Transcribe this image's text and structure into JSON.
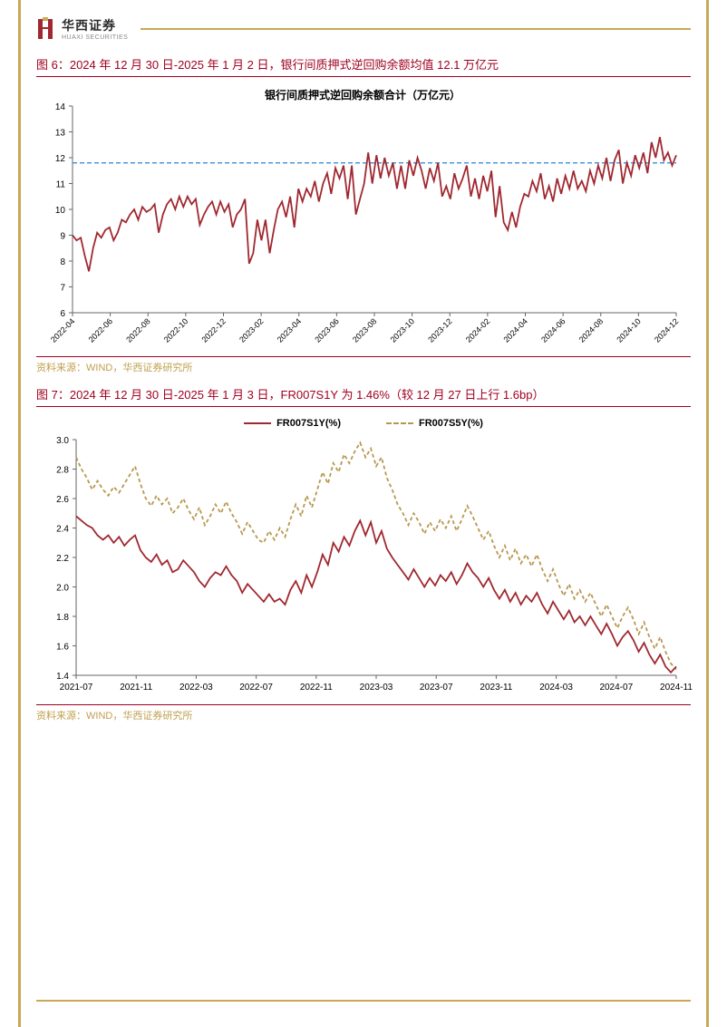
{
  "header": {
    "company_cn": "华西证券",
    "company_en": "HUAXI SECURITIES"
  },
  "chart6": {
    "type": "line",
    "caption": "图 6：2024 年 12 月 30 日-2025 年 1 月 2 日，银行间质押式逆回购余额均值 12.1 万亿元",
    "chart_title": "银行间质押式逆回购余额合计（万亿元）",
    "source": "资料来源：WIND，华西证券研究所",
    "ylim": [
      6,
      14
    ],
    "ytick_step": 1,
    "yticks": [
      "6",
      "7",
      "8",
      "9",
      "10",
      "11",
      "12",
      "13",
      "14"
    ],
    "xlabels": [
      "2022-04",
      "2022-06",
      "2022-08",
      "2022-10",
      "2022-12",
      "2023-02",
      "2023-04",
      "2023-06",
      "2023-08",
      "2023-10",
      "2023-12",
      "2024-02",
      "2024-04",
      "2024-06",
      "2024-08",
      "2024-10",
      "2024-12"
    ],
    "reference_line": 11.8,
    "reference_color": "#3a8fd8",
    "line_color": "#a02830",
    "line_width": 1.8,
    "grid_color": "#666666",
    "background_color": "#ffffff",
    "title_fontsize": 12,
    "series": [
      9.0,
      8.8,
      8.9,
      8.2,
      7.6,
      8.5,
      9.1,
      8.9,
      9.2,
      9.3,
      8.8,
      9.1,
      9.6,
      9.5,
      9.8,
      10.0,
      9.6,
      10.1,
      9.9,
      10.0,
      10.2,
      9.1,
      9.8,
      10.2,
      10.4,
      10.0,
      10.5,
      10.1,
      10.5,
      10.2,
      10.4,
      9.4,
      9.8,
      10.1,
      10.3,
      9.8,
      10.3,
      9.9,
      10.2,
      9.3,
      9.8,
      10.0,
      10.4,
      7.9,
      8.3,
      9.6,
      8.8,
      9.6,
      8.3,
      9.2,
      10.0,
      10.3,
      9.7,
      10.5,
      9.3,
      10.8,
      10.3,
      10.8,
      10.5,
      11.1,
      10.3,
      11.0,
      11.4,
      10.6,
      11.6,
      11.2,
      11.7,
      10.4,
      11.7,
      9.8,
      10.4,
      11.0,
      12.2,
      11.0,
      12.1,
      11.2,
      12.0,
      11.3,
      11.8,
      10.8,
      11.7,
      10.8,
      11.9,
      11.3,
      12.0,
      11.5,
      10.8,
      11.6,
      11.1,
      11.8,
      10.5,
      10.9,
      10.4,
      11.4,
      10.8,
      11.2,
      11.7,
      10.5,
      11.2,
      10.4,
      11.3,
      10.7,
      11.5,
      9.7,
      10.9,
      9.5,
      9.2,
      9.9,
      9.3,
      10.1,
      10.6,
      10.5,
      11.1,
      10.7,
      11.4,
      10.4,
      10.9,
      10.3,
      11.2,
      10.6,
      11.3,
      10.8,
      11.5,
      10.8,
      11.1,
      10.7,
      11.5,
      11.0,
      11.7,
      11.2,
      12.0,
      11.1,
      11.9,
      12.3,
      11.0,
      11.8,
      11.3,
      12.1,
      11.6,
      12.2,
      11.4,
      12.6,
      12.0,
      12.8,
      11.9,
      12.2,
      11.7,
      12.1
    ]
  },
  "chart7": {
    "type": "line",
    "caption": "图 7：2024 年 12 月 30 日-2025 年 1 月 3 日，FR007S1Y 为 1.46%（较 12 月 27 日上行 1.6bp）",
    "source": "资料来源：WIND，华西证券研究所",
    "ylim": [
      1.4,
      3.0
    ],
    "ytick_step": 0.2,
    "yticks": [
      "1.4",
      "1.6",
      "1.8",
      "2.0",
      "2.2",
      "2.4",
      "2.6",
      "2.8",
      "3.0"
    ],
    "xlabels": [
      "2021-07",
      "2021-11",
      "2022-03",
      "2022-07",
      "2022-11",
      "2023-03",
      "2023-07",
      "2023-11",
      "2024-03",
      "2024-07",
      "2024-11"
    ],
    "legend": [
      {
        "label": "FR007S1Y(%)",
        "color": "#a02830",
        "dash": "none"
      },
      {
        "label": "FR007S5Y(%)",
        "color": "#b89850",
        "dash": "4,3"
      }
    ],
    "line_width": 1.8,
    "grid_color": "#666666",
    "background_color": "#ffffff",
    "series_s1y": [
      2.48,
      2.45,
      2.42,
      2.4,
      2.35,
      2.32,
      2.35,
      2.3,
      2.34,
      2.28,
      2.32,
      2.35,
      2.25,
      2.2,
      2.17,
      2.22,
      2.15,
      2.18,
      2.1,
      2.12,
      2.18,
      2.14,
      2.1,
      2.04,
      2.0,
      2.06,
      2.1,
      2.08,
      2.14,
      2.08,
      2.04,
      1.96,
      2.02,
      1.98,
      1.94,
      1.9,
      1.95,
      1.9,
      1.92,
      1.88,
      1.98,
      2.04,
      1.96,
      2.08,
      2.0,
      2.1,
      2.22,
      2.15,
      2.3,
      2.24,
      2.34,
      2.28,
      2.38,
      2.45,
      2.35,
      2.44,
      2.3,
      2.38,
      2.26,
      2.2,
      2.15,
      2.1,
      2.05,
      2.12,
      2.06,
      2.0,
      2.06,
      2.01,
      2.08,
      2.04,
      2.1,
      2.02,
      2.08,
      2.16,
      2.1,
      2.06,
      2.0,
      2.06,
      1.98,
      1.92,
      1.98,
      1.9,
      1.96,
      1.88,
      1.94,
      1.9,
      1.96,
      1.88,
      1.82,
      1.9,
      1.84,
      1.78,
      1.84,
      1.76,
      1.8,
      1.74,
      1.8,
      1.74,
      1.68,
      1.75,
      1.68,
      1.6,
      1.66,
      1.7,
      1.64,
      1.56,
      1.62,
      1.54,
      1.48,
      1.54,
      1.46,
      1.42,
      1.46
    ],
    "series_s5y": [
      2.88,
      2.8,
      2.74,
      2.66,
      2.72,
      2.66,
      2.62,
      2.68,
      2.64,
      2.7,
      2.76,
      2.82,
      2.7,
      2.6,
      2.55,
      2.62,
      2.56,
      2.6,
      2.5,
      2.54,
      2.6,
      2.52,
      2.46,
      2.54,
      2.42,
      2.48,
      2.56,
      2.5,
      2.58,
      2.5,
      2.44,
      2.36,
      2.44,
      2.38,
      2.32,
      2.3,
      2.38,
      2.32,
      2.4,
      2.34,
      2.46,
      2.56,
      2.48,
      2.62,
      2.54,
      2.66,
      2.78,
      2.7,
      2.84,
      2.78,
      2.9,
      2.84,
      2.92,
      2.98,
      2.88,
      2.94,
      2.82,
      2.88,
      2.74,
      2.66,
      2.56,
      2.5,
      2.42,
      2.5,
      2.44,
      2.36,
      2.44,
      2.38,
      2.46,
      2.4,
      2.48,
      2.38,
      2.46,
      2.55,
      2.48,
      2.4,
      2.32,
      2.38,
      2.28,
      2.2,
      2.28,
      2.18,
      2.26,
      2.16,
      2.22,
      2.14,
      2.22,
      2.12,
      2.04,
      2.12,
      2.02,
      1.94,
      2.02,
      1.92,
      1.98,
      1.9,
      1.96,
      1.88,
      1.8,
      1.88,
      1.8,
      1.72,
      1.8,
      1.86,
      1.78,
      1.68,
      1.76,
      1.66,
      1.58,
      1.66,
      1.56,
      1.48,
      1.44
    ]
  }
}
